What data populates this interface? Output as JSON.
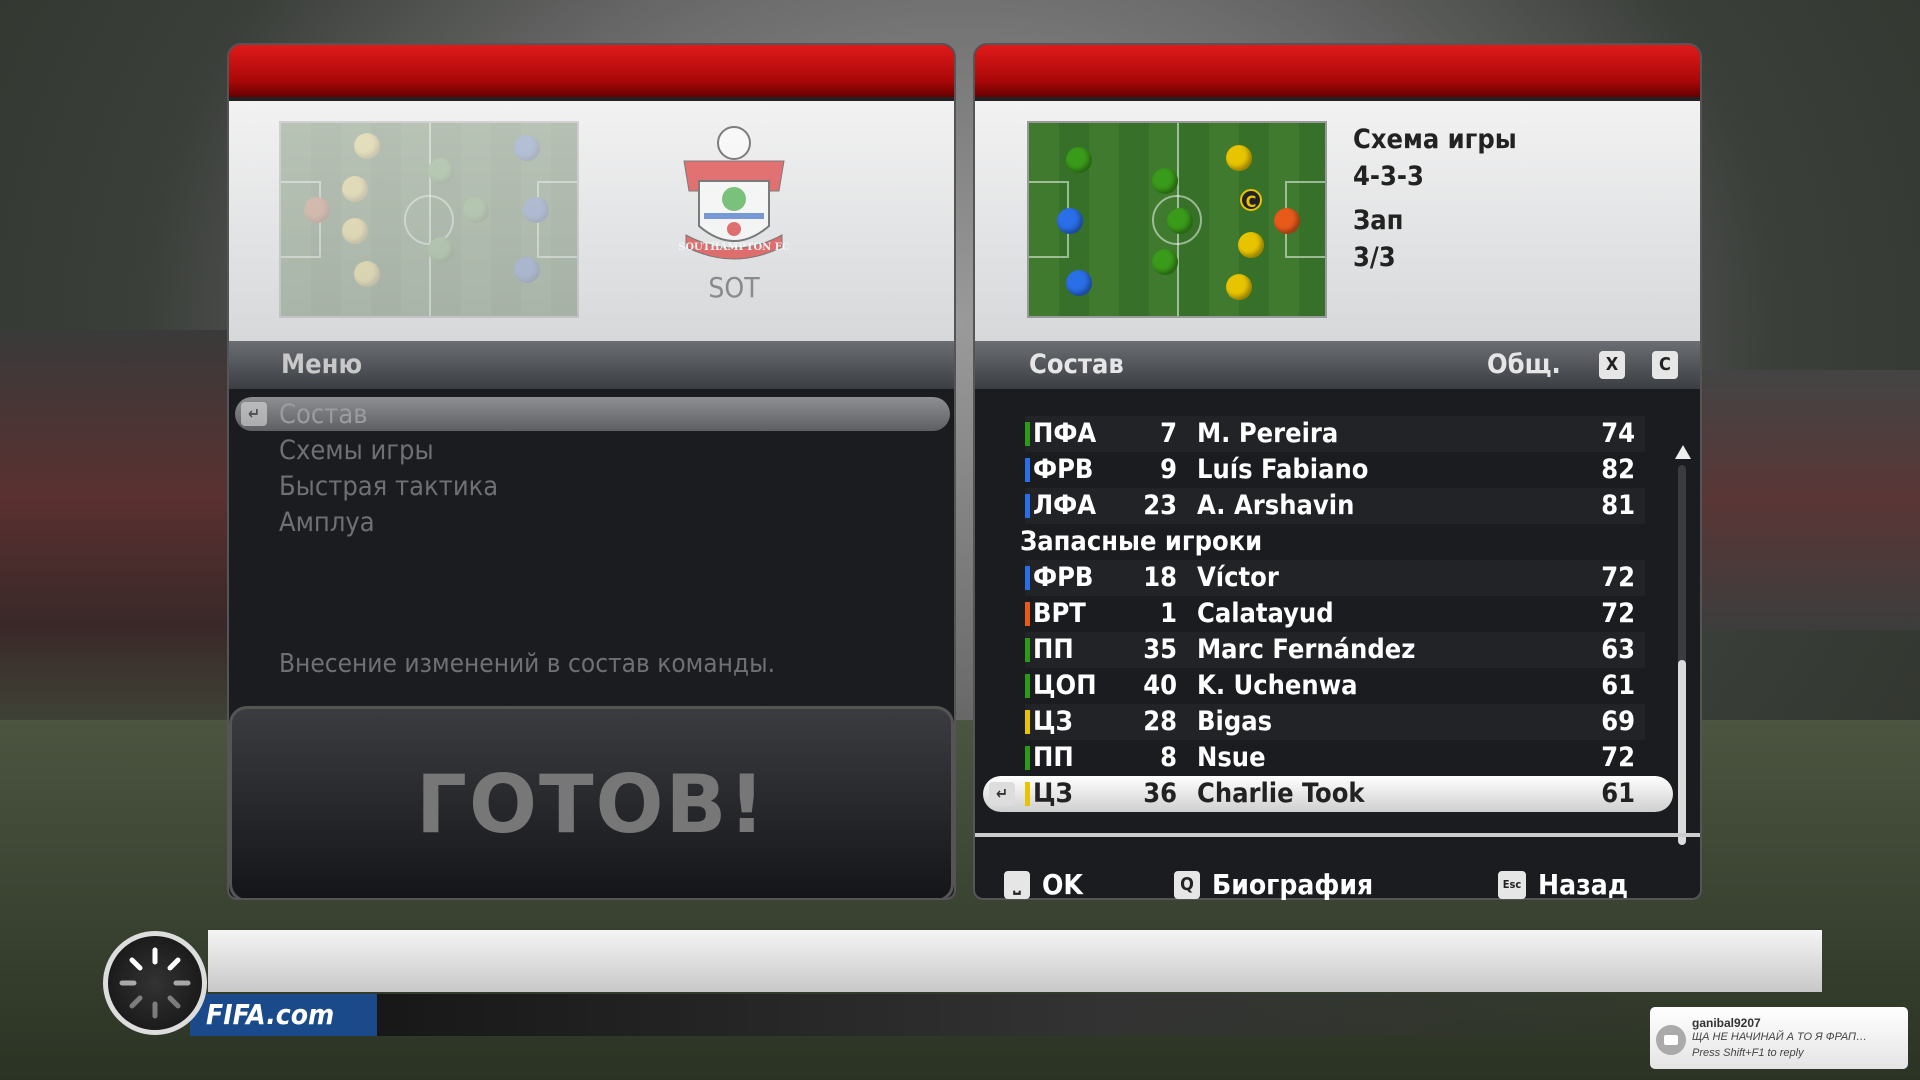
{
  "team": {
    "abbr": "SOT",
    "crest_text": "SOUTHAMPTON FC"
  },
  "menu": {
    "title": "Меню",
    "items": [
      "Состав",
      "Схемы игры",
      "Быстрая тактика",
      "Амплуа"
    ],
    "selected": 0,
    "description": "Внесение изменений в состав команды.",
    "ready_label": "ГОТОВ!"
  },
  "formation": {
    "label": "Схема игры",
    "value": "4-3-3",
    "subs_label": "Зап",
    "subs_value": "3/3"
  },
  "squad": {
    "title": "Состав",
    "column": "Общ.",
    "key_x": "X",
    "key_c": "C",
    "subs_heading": "Запасные игроки",
    "starters": [
      {
        "pos": "ПФА",
        "num": "7",
        "name": "M. Pereira",
        "ovr": "74",
        "color": "#2e9a1a"
      },
      {
        "pos": "ФРВ",
        "num": "9",
        "name": "Luís Fabiano",
        "ovr": "82",
        "color": "#2a6ee8"
      },
      {
        "pos": "ЛФА",
        "num": "23",
        "name": "A. Arshavin",
        "ovr": "81",
        "color": "#2a6ee8"
      }
    ],
    "subs": [
      {
        "pos": "ФРВ",
        "num": "18",
        "name": "Víctor",
        "ovr": "72",
        "color": "#2a6ee8"
      },
      {
        "pos": "ВРТ",
        "num": "1",
        "name": "Calatayud",
        "ovr": "72",
        "color": "#e85a1a"
      },
      {
        "pos": "ПП",
        "num": "35",
        "name": "Marc Fernández",
        "ovr": "63",
        "color": "#2e9a1a"
      },
      {
        "pos": "ЦОП",
        "num": "40",
        "name": "K. Uchenwa",
        "ovr": "61",
        "color": "#2e9a1a"
      },
      {
        "pos": "ЦЗ",
        "num": "28",
        "name": "Bigas",
        "ovr": "69",
        "color": "#e8c400"
      },
      {
        "pos": "ПП",
        "num": "8",
        "name": "Nsue",
        "ovr": "72",
        "color": "#2e9a1a"
      },
      {
        "pos": "ЦЗ",
        "num": "36",
        "name": "Charlie Took",
        "ovr": "61",
        "color": "#e8c400"
      }
    ],
    "selected_player": "Charlie Took"
  },
  "footer": {
    "ok": "OK",
    "ok_key": "⎵",
    "bio": "Биография",
    "bio_key": "Q",
    "back": "Назад",
    "back_key": "Esc"
  },
  "captain_mark": "C",
  "brand": "FIFA.com",
  "notification": {
    "user": "ganibal9207",
    "message": "ЩА НЕ НАЧИНАЙ А ТО Я ФРАП…",
    "hint": "Press Shift+F1 to reply"
  }
}
